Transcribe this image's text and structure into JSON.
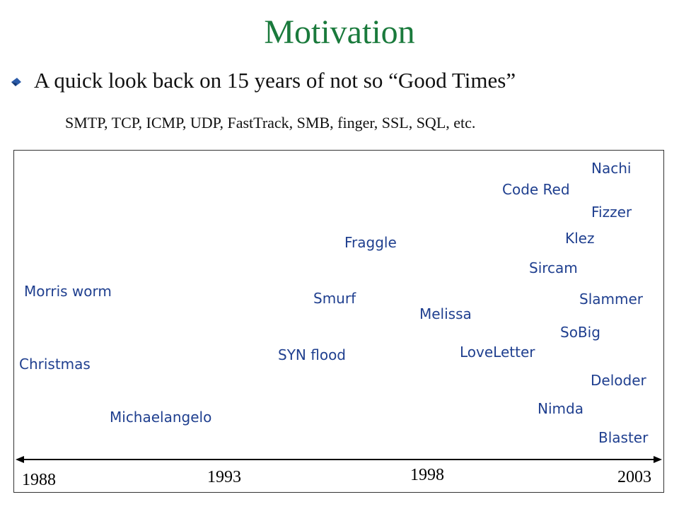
{
  "title": "Motivation",
  "bullet": {
    "text": "A quick look back on 15 years of not so “Good Times”",
    "icon": "diamond-bullet-icon"
  },
  "protocols": "SMTP, TCP, ICMP, UDP, FastTrack, SMB, finger, SSL, SQL, etc.",
  "timeline": {
    "years": [
      "1988",
      "1993",
      "1998",
      "2003"
    ],
    "events": [
      "Morris worm",
      "Christmas",
      "Michaelangelo",
      "Fraggle",
      "Smurf",
      "SYN flood",
      "Melissa",
      "LoveLetter",
      "Code Red",
      "Nachi",
      "Fizzer",
      "Klez",
      "Sircam",
      "Slammer",
      "SoBig",
      "Deloder",
      "Nimda",
      "Blaster"
    ]
  },
  "colors": {
    "title": "#1a7a3c",
    "worm_label": "#1f3f8f"
  }
}
